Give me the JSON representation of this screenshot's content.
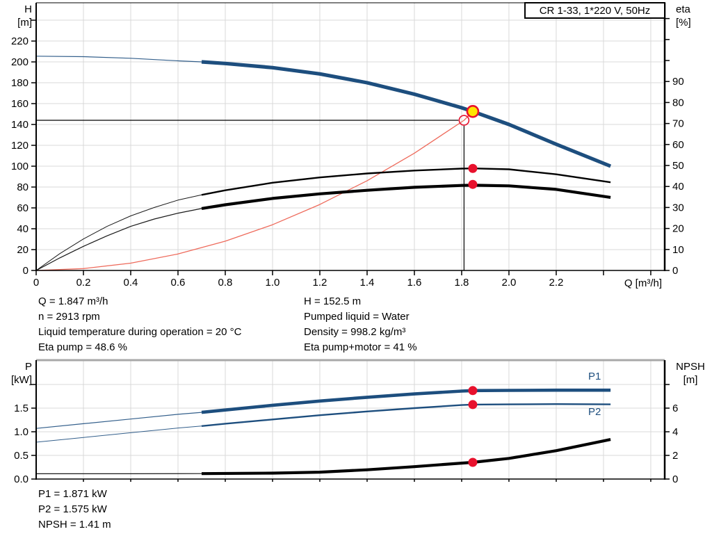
{
  "title_box": "CR 1-33, 1*220 V, 50Hz",
  "colors": {
    "curve_blue": "#1d4e7e",
    "curve_black": "#000000",
    "system_red": "#ee6a5b",
    "marker_red": "#e8112d",
    "marker_yellow": "#ffe400",
    "grid": "#d9d9d9",
    "frame": "#000000",
    "frame_gray": "#a8a8a8"
  },
  "info_top": {
    "left": [
      "Q = 1.847 m³/h",
      "n = 2913 rpm",
      "Liquid temperature during operation = 20 °C",
      "Eta pump = 48.6 %"
    ],
    "right": [
      "H = 152.5 m",
      "Pumped liquid = Water",
      "Density = 998.2 kg/m³",
      "Eta pump+motor = 41 %"
    ]
  },
  "info_bottom": [
    "P1 = 1.871 kW",
    "P2 = 1.575 kW",
    "NPSH = 1.41 m"
  ],
  "curve_labels": {
    "p1": "P1",
    "p2": "P2"
  },
  "chart_data": [
    {
      "type": "line",
      "title": "CR 1-33, 1*220 V, 50Hz",
      "x_axis": {
        "label": "Q [m³/h]",
        "min": 0,
        "max": 2.659,
        "ticks": [
          {
            "v": 0,
            "label": "0"
          },
          {
            "v": 0.2,
            "label": "0.2"
          },
          {
            "v": 0.4,
            "label": "0.4"
          },
          {
            "v": 0.6,
            "label": "0.6"
          },
          {
            "v": 0.8,
            "label": "0.8"
          },
          {
            "v": 1.0,
            "label": "1.0"
          },
          {
            "v": 1.2,
            "label": "1.2"
          },
          {
            "v": 1.4,
            "label": "1.4"
          },
          {
            "v": 1.6,
            "label": "1.6"
          },
          {
            "v": 1.8,
            "label": "1.8"
          },
          {
            "v": 2.0,
            "label": "2.0"
          },
          {
            "v": 2.2,
            "label": "2.2"
          }
        ],
        "unlabeled_ticks": [
          2.4,
          2.6
        ],
        "grid": [
          0.2,
          0.4,
          0.6,
          0.8,
          1.0,
          1.2,
          1.4,
          1.6,
          1.8,
          2.0,
          2.2,
          2.4,
          2.6
        ],
        "tick_len": 7
      },
      "y_left": {
        "label_lines": [
          "H",
          "[m]"
        ],
        "min": 0,
        "max": 256.7,
        "ticks": [
          {
            "v": 0,
            "label": "0"
          },
          {
            "v": 20,
            "label": "20"
          },
          {
            "v": 40,
            "label": "40"
          },
          {
            "v": 60,
            "label": "60"
          },
          {
            "v": 80,
            "label": "80"
          },
          {
            "v": 100,
            "label": "100"
          },
          {
            "v": 120,
            "label": "120"
          },
          {
            "v": 140,
            "label": "140"
          },
          {
            "v": 160,
            "label": "160"
          },
          {
            "v": 180,
            "label": "180"
          },
          {
            "v": 200,
            "label": "200"
          },
          {
            "v": 220,
            "label": "220"
          }
        ],
        "unlabeled_ticks": [
          240
        ],
        "grid": [
          20,
          40,
          60,
          80,
          100,
          120,
          140,
          160,
          180,
          200,
          220,
          240
        ]
      },
      "y_right": {
        "label_lines": [
          "eta",
          "[%]"
        ],
        "min": 0,
        "max": 127.5,
        "ticks": [
          {
            "v": 0,
            "label": "0"
          },
          {
            "v": 10,
            "label": "10"
          },
          {
            "v": 20,
            "label": "20"
          },
          {
            "v": 30,
            "label": "30"
          },
          {
            "v": 40,
            "label": "40"
          },
          {
            "v": 50,
            "label": "50"
          },
          {
            "v": 60,
            "label": "60"
          },
          {
            "v": 70,
            "label": "70"
          },
          {
            "v": 80,
            "label": "80"
          },
          {
            "v": 90,
            "label": "90"
          }
        ],
        "unlabeled_ticks": [
          100,
          110,
          120
        ],
        "grid": []
      },
      "guides": [
        {
          "type": "h",
          "v": 144,
          "q_to": 1.81
        },
        {
          "type": "v",
          "q": 1.81,
          "v_from": 144
        }
      ],
      "series": [
        {
          "name": "system-curve",
          "axis": "left",
          "color": "#ee6a5b",
          "w_thin": 1.3,
          "points": [
            [
              0,
              0
            ],
            [
              0.2,
              1.8
            ],
            [
              0.4,
              7.0
            ],
            [
              0.6,
              15.8
            ],
            [
              0.8,
              28.1
            ],
            [
              1.0,
              43.9
            ],
            [
              1.2,
              63.3
            ],
            [
              1.4,
              86.1
            ],
            [
              1.6,
              112.5
            ],
            [
              1.81,
              144
            ],
            [
              1.847,
              152.5
            ]
          ]
        },
        {
          "name": "eta-pump",
          "axis": "right",
          "color": "#000000",
          "w_thin": 1.0,
          "w_thick": 2.4,
          "thick_from": 0.7,
          "points": [
            [
              0,
              0
            ],
            [
              0.1,
              8
            ],
            [
              0.2,
              15
            ],
            [
              0.3,
              21
            ],
            [
              0.4,
              26
            ],
            [
              0.5,
              30
            ],
            [
              0.6,
              33.5
            ],
            [
              0.7,
              36
            ],
            [
              0.8,
              38.2
            ],
            [
              1.0,
              41.8
            ],
            [
              1.2,
              44.3
            ],
            [
              1.4,
              46.2
            ],
            [
              1.6,
              47.6
            ],
            [
              1.8,
              48.5
            ],
            [
              1.847,
              48.6
            ],
            [
              2.0,
              48.2
            ],
            [
              2.2,
              45.8
            ],
            [
              2.43,
              42
            ]
          ]
        },
        {
          "name": "eta-pump-motor",
          "axis": "right",
          "color": "#000000",
          "w_thin": 1.2,
          "w_thick": 4.2,
          "thick_from": 0.7,
          "points": [
            [
              0,
              0
            ],
            [
              0.1,
              6
            ],
            [
              0.2,
              11.5
            ],
            [
              0.3,
              16.5
            ],
            [
              0.4,
              21
            ],
            [
              0.5,
              24.5
            ],
            [
              0.6,
              27.3
            ],
            [
              0.7,
              29.5
            ],
            [
              0.8,
              31.3
            ],
            [
              1.0,
              34.3
            ],
            [
              1.2,
              36.5
            ],
            [
              1.4,
              38.2
            ],
            [
              1.6,
              39.6
            ],
            [
              1.8,
              40.5
            ],
            [
              1.847,
              40.6
            ],
            [
              2.0,
              40.3
            ],
            [
              2.2,
              38.6
            ],
            [
              2.43,
              34.8
            ]
          ]
        },
        {
          "name": "qh-curve",
          "axis": "left",
          "color": "#1d4e7e",
          "w_thin": 1.2,
          "w_thick": 5.2,
          "thick_from": 0.7,
          "points": [
            [
              0,
              205.5
            ],
            [
              0.2,
              205
            ],
            [
              0.4,
              203.5
            ],
            [
              0.6,
              201
            ],
            [
              0.7,
              200
            ],
            [
              0.8,
              198.5
            ],
            [
              1.0,
              194.5
            ],
            [
              1.2,
              188.5
            ],
            [
              1.4,
              180
            ],
            [
              1.6,
              169
            ],
            [
              1.8,
              156
            ],
            [
              1.847,
              152.5
            ],
            [
              2.0,
              140
            ],
            [
              2.2,
              121
            ],
            [
              2.43,
              100
            ]
          ]
        }
      ],
      "markers": [
        {
          "name": "requested-duty-point",
          "style": "open",
          "q": 1.81,
          "v": 144,
          "axis": "left"
        },
        {
          "name": "actual-duty-point",
          "style": "yellow",
          "q": 1.847,
          "v": 152.5,
          "axis": "left"
        },
        {
          "name": "eta-pump-point",
          "style": "dot",
          "q": 1.847,
          "v": 48.6,
          "axis": "right"
        },
        {
          "name": "eta-pump-motor-point",
          "style": "dot",
          "q": 1.847,
          "v": 41,
          "axis": "right"
        }
      ],
      "frame": {
        "top_color": "#000000",
        "top_width": 1
      }
    },
    {
      "type": "line",
      "x_axis": {
        "label": "",
        "min": 0,
        "max": 2.659,
        "ticks": [],
        "unlabeled_ticks": [
          0.2,
          0.4,
          0.6,
          0.8,
          1.0,
          1.2,
          1.4,
          1.6,
          1.8,
          2.0,
          2.2,
          2.4,
          2.6
        ],
        "grid": [
          0.2,
          0.4,
          0.6,
          0.8,
          1.0,
          1.2,
          1.4,
          1.6,
          1.8,
          2.0,
          2.2,
          2.4,
          2.6
        ],
        "tick_len": 4
      },
      "y_left": {
        "label_lines": [
          "P",
          "[kW]"
        ],
        "min": 0,
        "max": 2.515,
        "ticks": [
          {
            "v": 0,
            "label": "0.0"
          },
          {
            "v": 0.5,
            "label": "0.5"
          },
          {
            "v": 1.0,
            "label": "1.0"
          },
          {
            "v": 1.5,
            "label": "1.5"
          }
        ],
        "unlabeled_ticks": [
          2.0
        ],
        "grid": [
          0.5,
          1.0,
          1.5,
          2.0
        ]
      },
      "y_right": {
        "label_lines": [
          "NPSH",
          "[m]"
        ],
        "min": 0,
        "max": 10.06,
        "ticks": [
          {
            "v": 0,
            "label": "0"
          },
          {
            "v": 2,
            "label": "2"
          },
          {
            "v": 4,
            "label": "4"
          },
          {
            "v": 6,
            "label": "6"
          }
        ],
        "unlabeled_ticks": [
          8
        ],
        "grid": []
      },
      "guides": [],
      "series": [
        {
          "name": "npsh-curve",
          "axis": "right",
          "color": "#000000",
          "w_thin": 1.2,
          "w_thick": 4.2,
          "thick_from": 0.7,
          "points": [
            [
              0,
              0.45
            ],
            [
              0.4,
              0.45
            ],
            [
              0.7,
              0.46
            ],
            [
              1.0,
              0.5
            ],
            [
              1.2,
              0.58
            ],
            [
              1.4,
              0.78
            ],
            [
              1.6,
              1.05
            ],
            [
              1.8,
              1.35
            ],
            [
              1.847,
              1.41
            ],
            [
              2.0,
              1.75
            ],
            [
              2.2,
              2.4
            ],
            [
              2.43,
              3.35
            ]
          ]
        },
        {
          "name": "p2-curve",
          "axis": "left",
          "color": "#1d4e7e",
          "w_thin": 1.0,
          "w_thick": 2.4,
          "thick_from": 0.7,
          "points": [
            [
              0,
              0.78
            ],
            [
              0.2,
              0.88
            ],
            [
              0.4,
              0.98
            ],
            [
              0.6,
              1.08
            ],
            [
              0.7,
              1.12
            ],
            [
              0.8,
              1.17
            ],
            [
              1.0,
              1.26
            ],
            [
              1.2,
              1.35
            ],
            [
              1.4,
              1.43
            ],
            [
              1.6,
              1.5
            ],
            [
              1.8,
              1.565
            ],
            [
              1.847,
              1.575
            ],
            [
              2.0,
              1.58
            ],
            [
              2.2,
              1.585
            ],
            [
              2.43,
              1.58
            ]
          ]
        },
        {
          "name": "p1-curve",
          "axis": "left",
          "color": "#1d4e7e",
          "w_thin": 1.2,
          "w_thick": 4.6,
          "thick_from": 0.7,
          "points": [
            [
              0,
              1.07
            ],
            [
              0.2,
              1.17
            ],
            [
              0.4,
              1.27
            ],
            [
              0.6,
              1.37
            ],
            [
              0.7,
              1.41
            ],
            [
              0.8,
              1.46
            ],
            [
              1.0,
              1.56
            ],
            [
              1.2,
              1.65
            ],
            [
              1.4,
              1.73
            ],
            [
              1.6,
              1.8
            ],
            [
              1.8,
              1.86
            ],
            [
              1.847,
              1.871
            ],
            [
              2.0,
              1.875
            ],
            [
              2.2,
              1.88
            ],
            [
              2.43,
              1.88
            ]
          ]
        }
      ],
      "markers": [
        {
          "name": "p1-point",
          "style": "dot",
          "q": 1.847,
          "v": 1.871,
          "axis": "left"
        },
        {
          "name": "p2-point",
          "style": "dot",
          "q": 1.847,
          "v": 1.575,
          "axis": "left"
        },
        {
          "name": "npsh-point",
          "style": "dot",
          "q": 1.847,
          "v": 1.41,
          "axis": "right"
        }
      ],
      "frame": {
        "top_color": "#a8a8a8",
        "top_width": 3
      }
    }
  ]
}
